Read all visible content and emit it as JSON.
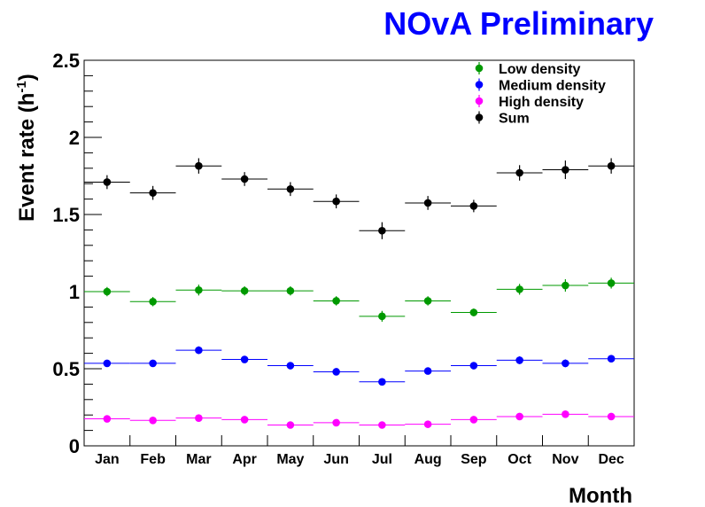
{
  "chart_data": {
    "type": "scatter",
    "watermark": "NOvA Preliminary",
    "watermark_color": "#0000ff",
    "xlabel": "Month",
    "ylabel_main": "Event rate (h",
    "ylabel_sup": "-1",
    "ylabel_close": ")",
    "categories": [
      "Jan",
      "Feb",
      "Mar",
      "Apr",
      "May",
      "Jun",
      "Jul",
      "Aug",
      "Sep",
      "Oct",
      "Nov",
      "Dec"
    ],
    "ylim": [
      0,
      2.5
    ],
    "yticks": [
      "0",
      "0.5",
      "1",
      "1.5",
      "2",
      "2.5"
    ],
    "legend_position": "top-right",
    "series": [
      {
        "name": "Low density",
        "color": "#009900",
        "values": [
          1.0,
          0.935,
          1.01,
          1.005,
          1.005,
          0.94,
          0.84,
          0.94,
          0.865,
          1.015,
          1.04,
          1.055
        ],
        "errors": [
          0.03,
          0.03,
          0.035,
          0.03,
          0.03,
          0.03,
          0.035,
          0.03,
          0.025,
          0.035,
          0.04,
          0.035
        ]
      },
      {
        "name": "Medium density",
        "color": "#0000ff",
        "values": [
          0.535,
          0.535,
          0.62,
          0.56,
          0.52,
          0.48,
          0.415,
          0.485,
          0.52,
          0.555,
          0.535,
          0.565
        ],
        "errors": [
          0.02,
          0.02,
          0.025,
          0.02,
          0.02,
          0.02,
          0.02,
          0.02,
          0.02,
          0.025,
          0.025,
          0.02
        ]
      },
      {
        "name": "High density",
        "color": "#ff00ff",
        "values": [
          0.175,
          0.165,
          0.18,
          0.17,
          0.135,
          0.15,
          0.135,
          0.14,
          0.17,
          0.19,
          0.205,
          0.19
        ],
        "errors": [
          0.012,
          0.012,
          0.012,
          0.012,
          0.01,
          0.012,
          0.01,
          0.01,
          0.012,
          0.012,
          0.015,
          0.012
        ]
      },
      {
        "name": "Sum",
        "color": "#000000",
        "values": [
          1.71,
          1.64,
          1.815,
          1.73,
          1.665,
          1.585,
          1.395,
          1.575,
          1.555,
          1.77,
          1.79,
          1.815
        ],
        "errors": [
          0.045,
          0.045,
          0.05,
          0.045,
          0.045,
          0.045,
          0.055,
          0.045,
          0.04,
          0.05,
          0.06,
          0.05
        ]
      }
    ]
  }
}
